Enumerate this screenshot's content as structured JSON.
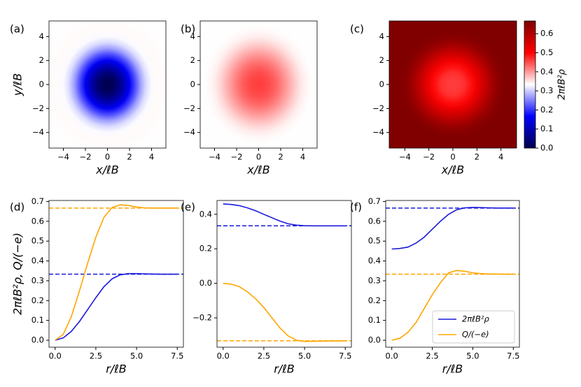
{
  "chart_data": [
    {
      "type": "heatmap",
      "panel_label": "(a)",
      "xlabel": "x/ℓB",
      "ylabel": "y/ℓB",
      "xlim": [
        -5.3,
        5.3
      ],
      "ylim": [
        -5.3,
        5.3
      ],
      "xticks": [
        {
          "value": -4,
          "label": "−4"
        },
        {
          "value": -2,
          "label": "−2"
        },
        0,
        2,
        4
      ],
      "yticks": [
        {
          "value": -4,
          "label": "−4"
        },
        {
          "value": -2,
          "label": "−2"
        },
        0,
        2,
        4
      ],
      "clim": [
        0,
        0.6667
      ],
      "colormap": [
        "#00004c",
        "#0000ff",
        "#ffffff",
        "#ff0000",
        "#800000"
      ]
    },
    {
      "type": "heatmap",
      "panel_label": "(b)",
      "xlabel": "x/ℓB",
      "xlim": [
        -5.3,
        5.3
      ],
      "ylim": [
        -5.3,
        5.3
      ],
      "xticks": [
        {
          "value": -4,
          "label": "−4"
        },
        {
          "value": -2,
          "label": "−2"
        },
        0,
        2,
        4
      ],
      "yticks": [
        {
          "value": -4,
          "label": "−4"
        },
        {
          "value": -2,
          "label": "−2"
        },
        0,
        2,
        4
      ],
      "clim": [
        0,
        0.6667
      ],
      "colormap": [
        "#00004c",
        "#0000ff",
        "#ffffff",
        "#ff0000",
        "#800000"
      ]
    },
    {
      "type": "heatmap",
      "panel_label": "(c)",
      "xlabel": "x/ℓB",
      "xlim": [
        -5.3,
        5.3
      ],
      "ylim": [
        -5.3,
        5.3
      ],
      "xticks": [
        {
          "value": -4,
          "label": "−4"
        },
        {
          "value": -2,
          "label": "−2"
        },
        0,
        2,
        4
      ],
      "yticks": [
        {
          "value": -4,
          "label": "−4"
        },
        {
          "value": -2,
          "label": "−2"
        },
        0,
        2,
        4
      ],
      "clim": [
        0,
        0.6667
      ],
      "colormap": [
        "#00004c",
        "#0000ff",
        "#ffffff",
        "#ff0000",
        "#800000"
      ],
      "colorbar": {
        "label": "2πℓB²ρ",
        "ticks": [
          {
            "value": 0,
            "label": "0.0"
          },
          0.1,
          0.2,
          0.3,
          0.4,
          0.5,
          0.6
        ]
      }
    },
    {
      "type": "line",
      "panel_label": "(d)",
      "xlabel": "r/ℓB",
      "ylabel": "2πℓB²ρ, Q/(−e)",
      "x": [
        0,
        0.5,
        1,
        1.5,
        2,
        2.5,
        3,
        3.5,
        4,
        4.5,
        5,
        5.5,
        6,
        6.5,
        7,
        7.5
      ],
      "series": [
        {
          "color": "#1a1adb",
          "values": [
            0,
            0.012,
            0.045,
            0.095,
            0.155,
            0.215,
            0.27,
            0.31,
            0.33,
            0.336,
            0.336,
            0.335,
            0.334,
            0.333,
            0.333,
            0.333
          ]
        },
        {
          "color": "#ffa500",
          "values": [
            0,
            0.03,
            0.12,
            0.25,
            0.39,
            0.52,
            0.62,
            0.67,
            0.683,
            0.68,
            0.672,
            0.668,
            0.667,
            0.667,
            0.667,
            0.667
          ]
        }
      ],
      "reference_lines": [
        {
          "value": 0.3333,
          "color": "#1a1adb"
        },
        {
          "value": 0.6667,
          "color": "#ffa500"
        }
      ],
      "xlim": [
        -0.375,
        7.875
      ],
      "ylim": [
        -0.035,
        0.705
      ],
      "xticks": [
        {
          "value": 0,
          "label": "0.0"
        },
        2.5,
        {
          "value": 5,
          "label": "5.0"
        },
        7.5
      ],
      "yticks": [
        {
          "value": 0,
          "label": "0.0"
        },
        0.1,
        0.2,
        0.3,
        0.4,
        0.5,
        0.6,
        0.7
      ]
    },
    {
      "type": "line",
      "panel_label": "(e)",
      "xlabel": "r/ℓB",
      "x": [
        0,
        0.5,
        1,
        1.5,
        2,
        2.5,
        3,
        3.5,
        4,
        4.5,
        5,
        5.5,
        6,
        6.5,
        7,
        7.5
      ],
      "series": [
        {
          "color": "#1a1adb",
          "values": [
            0.46,
            0.457,
            0.45,
            0.437,
            0.42,
            0.4,
            0.38,
            0.36,
            0.345,
            0.337,
            0.334,
            0.333,
            0.333,
            0.333,
            0.333,
            0.333
          ]
        },
        {
          "color": "#ffa500",
          "values": [
            0,
            -0.005,
            -0.02,
            -0.05,
            -0.09,
            -0.14,
            -0.2,
            -0.26,
            -0.305,
            -0.33,
            -0.337,
            -0.336,
            -0.335,
            -0.334,
            -0.334,
            -0.333
          ]
        }
      ],
      "reference_lines": [
        {
          "value": 0.3333,
          "color": "#1a1adb"
        },
        {
          "value": -0.3333,
          "color": "#ffa500"
        }
      ],
      "xlim": [
        -0.375,
        7.875
      ],
      "ylim": [
        -0.37,
        0.48
      ],
      "xticks": [
        {
          "value": 0,
          "label": "0.0"
        },
        2.5,
        {
          "value": 5,
          "label": "5.0"
        },
        7.5
      ],
      "yticks": [
        {
          "value": -0.2,
          "label": "−0.2"
        },
        {
          "value": 0,
          "label": "0.0"
        },
        0.2,
        0.4
      ]
    },
    {
      "type": "line",
      "panel_label": "(f)",
      "xlabel": "r/ℓB",
      "legend": "lower right",
      "x": [
        0,
        0.5,
        1,
        1.5,
        2,
        2.5,
        3,
        3.5,
        4,
        4.5,
        5,
        5.5,
        6,
        6.5,
        7,
        7.5
      ],
      "series": [
        {
          "name": "2πℓB²ρ",
          "color": "#1a1adb",
          "values": [
            0.46,
            0.463,
            0.47,
            0.49,
            0.52,
            0.56,
            0.6,
            0.635,
            0.658,
            0.668,
            0.67,
            0.669,
            0.668,
            0.667,
            0.667,
            0.667
          ]
        },
        {
          "name": "Q/(−e)",
          "color": "#ffa500",
          "values": [
            0,
            0.01,
            0.04,
            0.09,
            0.16,
            0.23,
            0.29,
            0.34,
            0.352,
            0.348,
            0.34,
            0.336,
            0.334,
            0.334,
            0.333,
            0.333
          ]
        }
      ],
      "reference_lines": [
        {
          "value": 0.6667,
          "color": "#1a1adb"
        },
        {
          "value": 0.3333,
          "color": "#ffa500"
        }
      ],
      "xlim": [
        -0.375,
        7.875
      ],
      "ylim": [
        -0.035,
        0.705
      ],
      "xticks": [
        {
          "value": 0,
          "label": "0.0"
        },
        2.5,
        {
          "value": 5,
          "label": "5.0"
        },
        7.5
      ],
      "yticks": [
        {
          "value": 0,
          "label": "0.0"
        },
        0.1,
        0.2,
        0.3,
        0.4,
        0.5,
        0.6,
        0.7
      ]
    }
  ]
}
